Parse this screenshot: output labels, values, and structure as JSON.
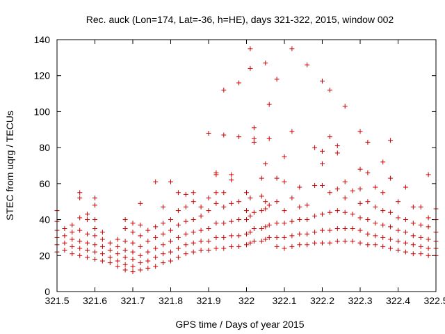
{
  "chart_data": {
    "type": "scatter",
    "title": "Rec. auck (Lon=174, Lat=-36, h=HE), days 321-322, 2015, window 002",
    "xlabel": "GPS time / Days of year 2015",
    "ylabel": "STEC from uqrg / TECUs",
    "xlim": [
      321.5,
      322.5
    ],
    "ylim": [
      0,
      140
    ],
    "xticks": [
      "321.5",
      "321.6",
      "321.7",
      "321.8",
      "321.9",
      "322",
      "322.1",
      "322.2",
      "322.3",
      "322.4",
      "322.5"
    ],
    "yticks": [
      "0",
      "20",
      "40",
      "60",
      "80",
      "100",
      "120",
      "140"
    ],
    "marker": "+",
    "color": "#cc0000",
    "grid": false,
    "series": [
      {
        "name": "STEC",
        "points": [
          [
            321.5,
            22
          ],
          [
            321.5,
            26
          ],
          [
            321.5,
            30
          ],
          [
            321.5,
            34
          ],
          [
            321.5,
            39
          ],
          [
            321.5,
            45
          ],
          [
            321.52,
            23
          ],
          [
            321.52,
            27
          ],
          [
            321.52,
            31
          ],
          [
            321.52,
            35
          ],
          [
            321.54,
            21
          ],
          [
            321.54,
            25
          ],
          [
            321.54,
            29
          ],
          [
            321.54,
            33
          ],
          [
            321.54,
            37
          ],
          [
            321.56,
            20
          ],
          [
            321.56,
            24
          ],
          [
            321.56,
            28
          ],
          [
            321.56,
            34
          ],
          [
            321.56,
            41
          ],
          [
            321.56,
            52
          ],
          [
            321.56,
            55
          ],
          [
            321.58,
            19
          ],
          [
            321.58,
            23
          ],
          [
            321.58,
            27
          ],
          [
            321.58,
            32
          ],
          [
            321.58,
            40
          ],
          [
            321.58,
            43
          ],
          [
            321.6,
            18
          ],
          [
            321.6,
            22
          ],
          [
            321.6,
            26
          ],
          [
            321.6,
            31
          ],
          [
            321.6,
            35
          ],
          [
            321.6,
            40
          ],
          [
            321.6,
            48
          ],
          [
            321.6,
            52
          ],
          [
            321.62,
            17
          ],
          [
            321.62,
            21
          ],
          [
            321.62,
            25
          ],
          [
            321.62,
            29
          ],
          [
            321.62,
            33
          ],
          [
            321.64,
            16
          ],
          [
            321.64,
            19
          ],
          [
            321.64,
            23
          ],
          [
            321.64,
            27
          ],
          [
            321.66,
            14
          ],
          [
            321.66,
            17
          ],
          [
            321.66,
            21
          ],
          [
            321.66,
            25
          ],
          [
            321.66,
            29
          ],
          [
            321.68,
            12
          ],
          [
            321.68,
            15
          ],
          [
            321.68,
            19
          ],
          [
            321.68,
            23
          ],
          [
            321.68,
            28
          ],
          [
            321.68,
            35
          ],
          [
            321.68,
            40
          ],
          [
            321.7,
            11
          ],
          [
            321.7,
            14
          ],
          [
            321.7,
            18
          ],
          [
            321.7,
            22
          ],
          [
            321.7,
            27
          ],
          [
            321.7,
            33
          ],
          [
            321.7,
            38
          ],
          [
            321.72,
            12
          ],
          [
            321.72,
            16
          ],
          [
            321.72,
            20
          ],
          [
            321.72,
            25
          ],
          [
            321.72,
            31
          ],
          [
            321.72,
            37
          ],
          [
            321.72,
            49
          ],
          [
            321.74,
            13
          ],
          [
            321.74,
            17
          ],
          [
            321.74,
            22
          ],
          [
            321.74,
            28
          ],
          [
            321.74,
            34
          ],
          [
            321.76,
            14
          ],
          [
            321.76,
            19
          ],
          [
            321.76,
            24
          ],
          [
            321.76,
            30
          ],
          [
            321.76,
            36
          ],
          [
            321.76,
            61
          ],
          [
            321.78,
            16
          ],
          [
            321.78,
            21
          ],
          [
            321.78,
            26
          ],
          [
            321.78,
            32
          ],
          [
            321.78,
            38
          ],
          [
            321.78,
            47
          ],
          [
            321.8,
            17
          ],
          [
            321.8,
            22
          ],
          [
            321.8,
            28
          ],
          [
            321.8,
            34
          ],
          [
            321.8,
            40
          ],
          [
            321.8,
            61
          ],
          [
            321.82,
            19
          ],
          [
            321.82,
            24
          ],
          [
            321.82,
            30
          ],
          [
            321.82,
            37
          ],
          [
            321.82,
            45
          ],
          [
            321.82,
            55
          ],
          [
            321.84,
            21
          ],
          [
            321.84,
            26
          ],
          [
            321.84,
            32
          ],
          [
            321.84,
            39
          ],
          [
            321.84,
            47
          ],
          [
            321.84,
            54
          ],
          [
            321.86,
            22
          ],
          [
            321.86,
            27
          ],
          [
            321.86,
            33
          ],
          [
            321.86,
            40
          ],
          [
            321.86,
            50
          ],
          [
            321.86,
            55
          ],
          [
            321.88,
            23
          ],
          [
            321.88,
            28
          ],
          [
            321.88,
            34
          ],
          [
            321.88,
            42
          ],
          [
            321.88,
            47
          ],
          [
            321.9,
            23
          ],
          [
            321.9,
            28
          ],
          [
            321.9,
            35
          ],
          [
            321.9,
            45
          ],
          [
            321.9,
            52
          ],
          [
            321.9,
            88
          ],
          [
            321.92,
            24
          ],
          [
            321.92,
            30
          ],
          [
            321.92,
            38
          ],
          [
            321.92,
            49
          ],
          [
            321.92,
            65
          ],
          [
            321.92,
            66
          ],
          [
            321.92,
            55
          ],
          [
            321.94,
            24
          ],
          [
            321.94,
            30
          ],
          [
            321.94,
            38
          ],
          [
            321.94,
            47
          ],
          [
            321.94,
            55
          ],
          [
            321.94,
            112
          ],
          [
            321.94,
            87
          ],
          [
            321.96,
            25
          ],
          [
            321.96,
            31
          ],
          [
            321.96,
            39
          ],
          [
            321.96,
            49
          ],
          [
            321.96,
            62
          ],
          [
            321.96,
            65
          ],
          [
            321.98,
            25
          ],
          [
            321.98,
            31
          ],
          [
            321.98,
            40
          ],
          [
            321.98,
            50
          ],
          [
            321.98,
            86
          ],
          [
            321.98,
            116
          ],
          [
            322.0,
            26
          ],
          [
            322.0,
            32
          ],
          [
            322.0,
            40
          ],
          [
            322.0,
            45
          ],
          [
            322.0,
            55
          ],
          [
            322.01,
            27
          ],
          [
            322.01,
            33
          ],
          [
            322.01,
            42
          ],
          [
            322.01,
            52
          ],
          [
            322.01,
            124
          ],
          [
            322.01,
            135
          ],
          [
            322.02,
            28
          ],
          [
            322.02,
            35
          ],
          [
            322.02,
            44
          ],
          [
            322.02,
            83
          ],
          [
            322.02,
            85
          ],
          [
            322.02,
            91
          ],
          [
            322.04,
            28
          ],
          [
            322.04,
            35
          ],
          [
            322.04,
            45
          ],
          [
            322.04,
            53
          ],
          [
            322.04,
            63
          ],
          [
            322.05,
            29
          ],
          [
            322.05,
            36
          ],
          [
            322.05,
            46
          ],
          [
            322.05,
            50
          ],
          [
            322.05,
            71
          ],
          [
            322.05,
            127
          ],
          [
            322.06,
            30
          ],
          [
            322.06,
            37
          ],
          [
            322.06,
            48
          ],
          [
            322.06,
            85
          ],
          [
            322.06,
            104
          ],
          [
            322.08,
            25
          ],
          [
            322.08,
            30
          ],
          [
            322.08,
            38
          ],
          [
            322.08,
            50
          ],
          [
            322.08,
            63
          ],
          [
            322.08,
            118
          ],
          [
            322.1,
            24
          ],
          [
            322.1,
            30
          ],
          [
            322.1,
            38
          ],
          [
            322.1,
            45
          ],
          [
            322.1,
            61
          ],
          [
            322.1,
            75
          ],
          [
            322.12,
            25
          ],
          [
            322.12,
            31
          ],
          [
            322.12,
            39
          ],
          [
            322.12,
            52
          ],
          [
            322.12,
            89
          ],
          [
            322.12,
            135
          ],
          [
            322.14,
            26
          ],
          [
            322.14,
            32
          ],
          [
            322.14,
            40
          ],
          [
            322.14,
            47
          ],
          [
            322.14,
            58
          ],
          [
            322.16,
            26
          ],
          [
            322.16,
            32
          ],
          [
            322.16,
            40
          ],
          [
            322.16,
            48
          ],
          [
            322.16,
            126
          ],
          [
            322.18,
            27
          ],
          [
            322.18,
            33
          ],
          [
            322.18,
            42
          ],
          [
            322.18,
            59
          ],
          [
            322.18,
            80
          ],
          [
            322.2,
            27
          ],
          [
            322.2,
            34
          ],
          [
            322.2,
            43
          ],
          [
            322.2,
            59
          ],
          [
            322.2,
            71
          ],
          [
            322.2,
            78
          ],
          [
            322.2,
            117
          ],
          [
            322.22,
            27
          ],
          [
            322.22,
            34
          ],
          [
            322.22,
            44
          ],
          [
            322.22,
            55
          ],
          [
            322.22,
            86
          ],
          [
            322.22,
            112
          ],
          [
            322.24,
            28
          ],
          [
            322.24,
            35
          ],
          [
            322.24,
            45
          ],
          [
            322.24,
            57
          ],
          [
            322.24,
            77
          ],
          [
            322.24,
            81
          ],
          [
            322.26,
            28
          ],
          [
            322.26,
            35
          ],
          [
            322.26,
            44
          ],
          [
            322.26,
            52
          ],
          [
            322.26,
            61
          ],
          [
            322.26,
            103
          ],
          [
            322.28,
            28
          ],
          [
            322.28,
            35
          ],
          [
            322.28,
            43
          ],
          [
            322.28,
            56
          ],
          [
            322.3,
            27
          ],
          [
            322.3,
            34
          ],
          [
            322.3,
            41
          ],
          [
            322.3,
            49
          ],
          [
            322.3,
            57
          ],
          [
            322.3,
            68
          ],
          [
            322.3,
            89
          ],
          [
            322.32,
            26
          ],
          [
            322.32,
            32
          ],
          [
            322.32,
            40
          ],
          [
            322.32,
            50
          ],
          [
            322.32,
            66
          ],
          [
            322.32,
            83
          ],
          [
            322.34,
            26
          ],
          [
            322.34,
            31
          ],
          [
            322.34,
            38
          ],
          [
            322.34,
            47
          ],
          [
            322.34,
            58
          ],
          [
            322.36,
            25
          ],
          [
            322.36,
            30
          ],
          [
            322.36,
            37
          ],
          [
            322.36,
            45
          ],
          [
            322.36,
            55
          ],
          [
            322.36,
            72
          ],
          [
            322.38,
            24
          ],
          [
            322.38,
            29
          ],
          [
            322.38,
            36
          ],
          [
            322.38,
            44
          ],
          [
            322.38,
            63
          ],
          [
            322.38,
            84
          ],
          [
            322.4,
            23
          ],
          [
            322.4,
            28
          ],
          [
            322.4,
            34
          ],
          [
            322.4,
            41
          ],
          [
            322.4,
            50
          ],
          [
            322.42,
            22
          ],
          [
            322.42,
            27
          ],
          [
            322.42,
            33
          ],
          [
            322.42,
            40
          ],
          [
            322.42,
            58
          ],
          [
            322.44,
            21
          ],
          [
            322.44,
            26
          ],
          [
            322.44,
            31
          ],
          [
            322.44,
            38
          ],
          [
            322.44,
            47
          ],
          [
            322.46,
            21
          ],
          [
            322.46,
            25
          ],
          [
            322.46,
            30
          ],
          [
            322.46,
            37
          ],
          [
            322.46,
            47
          ],
          [
            322.48,
            20
          ],
          [
            322.48,
            24
          ],
          [
            322.48,
            29
          ],
          [
            322.48,
            36
          ],
          [
            322.48,
            41
          ],
          [
            322.48,
            65
          ],
          [
            322.5,
            20
          ],
          [
            322.5,
            24
          ],
          [
            322.5,
            28
          ],
          [
            322.5,
            33
          ],
          [
            322.5,
            40
          ],
          [
            322.5,
            46
          ]
        ]
      }
    ]
  }
}
